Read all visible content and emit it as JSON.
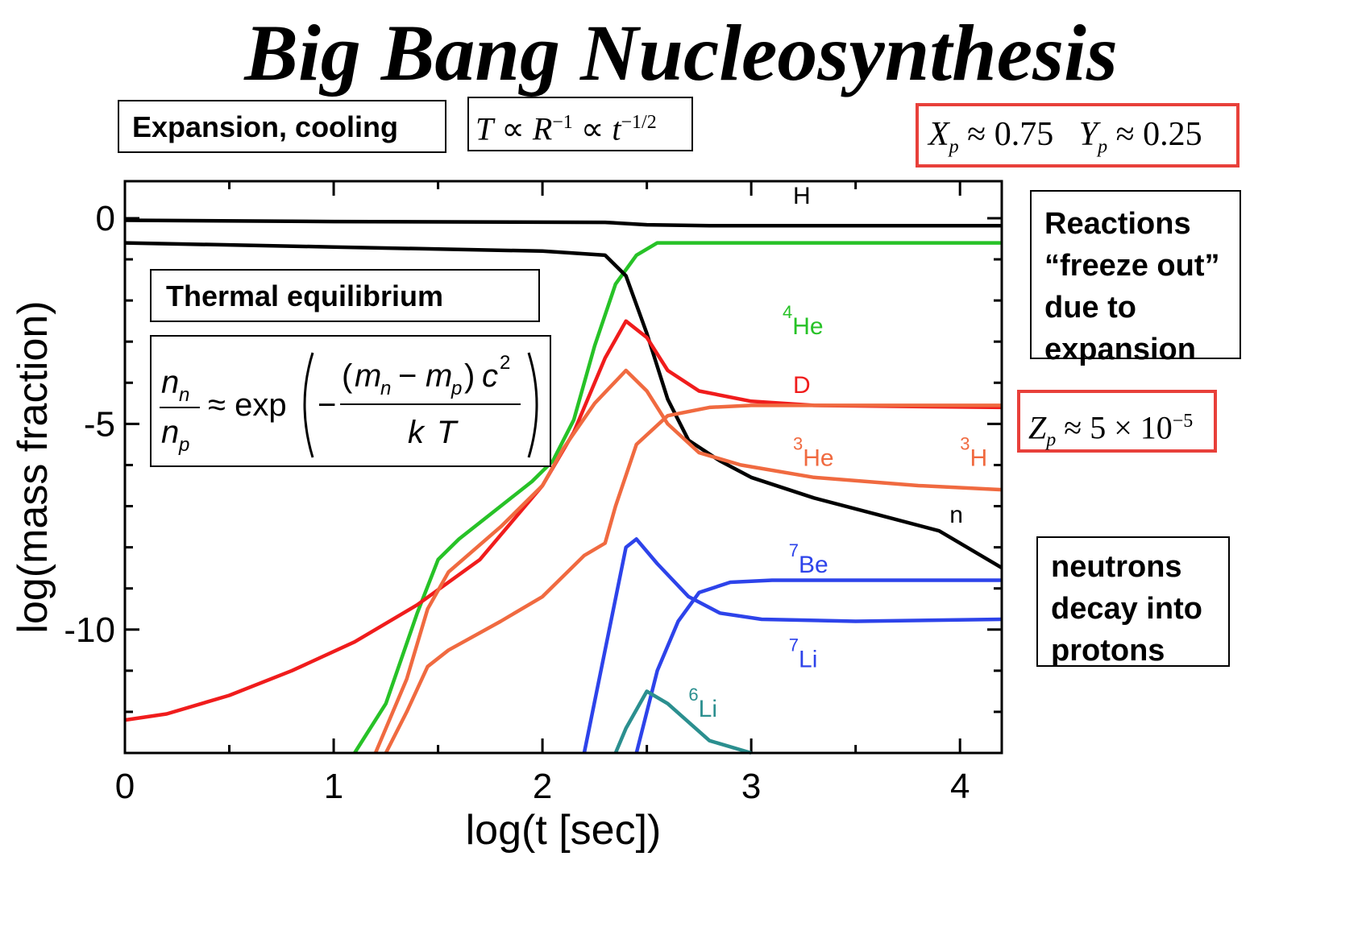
{
  "title": "Big Bang Nucleosynthesis",
  "boxes": {
    "expansion": "Expansion, cooling",
    "scaling": {
      "T": "T",
      "prop": "∝",
      "R": "R",
      "R_exp": "−1",
      "t": "t",
      "t_exp": "−1/2"
    },
    "abundances": {
      "X": "X",
      "X_sub": "p",
      "X_val": "≈ 0.75",
      "Y": "Y",
      "Y_sub": "p",
      "Y_val": "≈ 0.25"
    },
    "thermal": "Thermal equilibrium",
    "boltzmann": {
      "n": "n",
      "sub_n": "n",
      "sub_p": "p",
      "approx_exp": "≈ exp",
      "minus": "−",
      "m": "m",
      "c": "c",
      "c_exp": "2",
      "k": "k",
      "T": "T"
    },
    "freeze": [
      "Reactions",
      "“freeze out”",
      "due to",
      "expansion"
    ],
    "metals": {
      "Z": "Z",
      "Z_sub": "p",
      "Z_val": "≈ 5 × 10",
      "Z_exp": "−5"
    },
    "neutrons": [
      "neutrons",
      "decay into",
      "protons"
    ]
  },
  "colors": {
    "H": "#000000",
    "n": "#000000",
    "He4": "#27c227",
    "D": "#f01c1c",
    "He3": "#f06a40",
    "H3": "#f06a40",
    "Be7": "#2d43ea",
    "Li7": "#2d43ea",
    "Li6": "#2b8f8f",
    "red_box": "#e8403a"
  },
  "chart_data": {
    "type": "line",
    "xlabel": "log(t [sec])",
    "ylabel": "log(mass fraction)",
    "xlim": [
      0,
      4.2
    ],
    "ylim": [
      -13,
      0.9
    ],
    "xticks": [
      0,
      1,
      2,
      3,
      4
    ],
    "yticks": [
      0,
      -5,
      -10
    ],
    "series": [
      {
        "name": "H",
        "label_main": "H",
        "label_sup": "",
        "color_key": "H",
        "points": [
          [
            0,
            -0.05
          ],
          [
            1,
            -0.08
          ],
          [
            2.3,
            -0.1
          ],
          [
            2.5,
            -0.16
          ],
          [
            2.8,
            -0.18
          ],
          [
            4.2,
            -0.18
          ]
        ]
      },
      {
        "name": "4He",
        "label_main": "He",
        "label_sup": "4",
        "color_key": "He4",
        "points": [
          [
            1.1,
            -13
          ],
          [
            1.25,
            -11.8
          ],
          [
            1.4,
            -9.6
          ],
          [
            1.5,
            -8.3
          ],
          [
            1.6,
            -7.8
          ],
          [
            1.8,
            -7
          ],
          [
            1.95,
            -6.4
          ],
          [
            2.05,
            -5.9
          ],
          [
            2.15,
            -4.9
          ],
          [
            2.25,
            -3.1
          ],
          [
            2.35,
            -1.6
          ],
          [
            2.45,
            -0.9
          ],
          [
            2.55,
            -0.6
          ],
          [
            2.7,
            -0.6
          ],
          [
            4.2,
            -0.6
          ]
        ]
      },
      {
        "name": "n",
        "label_main": "n",
        "label_sup": "",
        "color_key": "n",
        "points": [
          [
            0,
            -0.6
          ],
          [
            1,
            -0.7
          ],
          [
            2,
            -0.8
          ],
          [
            2.3,
            -0.9
          ],
          [
            2.4,
            -1.4
          ],
          [
            2.5,
            -2.8
          ],
          [
            2.6,
            -4.4
          ],
          [
            2.7,
            -5.4
          ],
          [
            2.85,
            -5.9
          ],
          [
            3,
            -6.3
          ],
          [
            3.3,
            -6.8
          ],
          [
            3.6,
            -7.2
          ],
          [
            3.9,
            -7.6
          ],
          [
            4.2,
            -8.5
          ]
        ]
      },
      {
        "name": "D",
        "label_main": "D",
        "label_sup": "",
        "color_key": "D",
        "points": [
          [
            0,
            -12.2
          ],
          [
            0.2,
            -12.05
          ],
          [
            0.5,
            -11.6
          ],
          [
            0.8,
            -11
          ],
          [
            1.1,
            -10.3
          ],
          [
            1.4,
            -9.4
          ],
          [
            1.7,
            -8.3
          ],
          [
            2,
            -6.5
          ],
          [
            2.15,
            -5.2
          ],
          [
            2.3,
            -3.4
          ],
          [
            2.4,
            -2.5
          ],
          [
            2.5,
            -2.9
          ],
          [
            2.6,
            -3.7
          ],
          [
            2.75,
            -4.2
          ],
          [
            3,
            -4.45
          ],
          [
            3.3,
            -4.55
          ],
          [
            4.2,
            -4.6
          ]
        ]
      },
      {
        "name": "3He",
        "label_main": "He",
        "label_sup": "3",
        "color_key": "He3",
        "points": [
          [
            1.2,
            -13
          ],
          [
            1.35,
            -11.2
          ],
          [
            1.45,
            -9.5
          ],
          [
            1.55,
            -8.6
          ],
          [
            1.8,
            -7.5
          ],
          [
            2,
            -6.5
          ],
          [
            2.1,
            -5.6
          ],
          [
            2.25,
            -4.5
          ],
          [
            2.4,
            -3.7
          ],
          [
            2.5,
            -4.2
          ],
          [
            2.6,
            -5
          ],
          [
            2.75,
            -5.7
          ],
          [
            2.95,
            -6
          ],
          [
            3.3,
            -6.3
          ],
          [
            3.8,
            -6.5
          ],
          [
            4.2,
            -6.6
          ]
        ]
      },
      {
        "name": "3H",
        "label_main": "H",
        "label_sup": "3",
        "color_key": "H3",
        "points": [
          [
            1.25,
            -13
          ],
          [
            1.35,
            -12
          ],
          [
            1.45,
            -10.9
          ],
          [
            1.55,
            -10.5
          ],
          [
            1.8,
            -9.8
          ],
          [
            2,
            -9.2
          ],
          [
            2.2,
            -8.2
          ],
          [
            2.3,
            -7.9
          ],
          [
            2.35,
            -7
          ],
          [
            2.45,
            -5.5
          ],
          [
            2.6,
            -4.8
          ],
          [
            2.8,
            -4.6
          ],
          [
            3,
            -4.55
          ],
          [
            4.2,
            -4.55
          ]
        ]
      },
      {
        "name": "7Be",
        "label_main": "Be",
        "label_sup": "7",
        "color_key": "Be7",
        "points": [
          [
            2.2,
            -13
          ],
          [
            2.3,
            -10.5
          ],
          [
            2.4,
            -8
          ],
          [
            2.45,
            -7.8
          ],
          [
            2.55,
            -8.4
          ],
          [
            2.7,
            -9.2
          ],
          [
            2.85,
            -9.6
          ],
          [
            3.05,
            -9.75
          ],
          [
            3.5,
            -9.8
          ],
          [
            4.2,
            -9.75
          ]
        ]
      },
      {
        "name": "7Li",
        "label_main": "Li",
        "label_sup": "7",
        "color_key": "Li7",
        "points": [
          [
            2.45,
            -13
          ],
          [
            2.55,
            -11
          ],
          [
            2.65,
            -9.8
          ],
          [
            2.75,
            -9.1
          ],
          [
            2.9,
            -8.85
          ],
          [
            3.1,
            -8.8
          ],
          [
            4.2,
            -8.8
          ]
        ]
      },
      {
        "name": "6Li",
        "label_main": "Li",
        "label_sup": "6",
        "color_key": "Li6",
        "points": [
          [
            2.35,
            -13
          ],
          [
            2.4,
            -12.4
          ],
          [
            2.5,
            -11.5
          ],
          [
            2.6,
            -11.8
          ],
          [
            2.8,
            -12.7
          ],
          [
            3,
            -13
          ]
        ]
      }
    ]
  }
}
